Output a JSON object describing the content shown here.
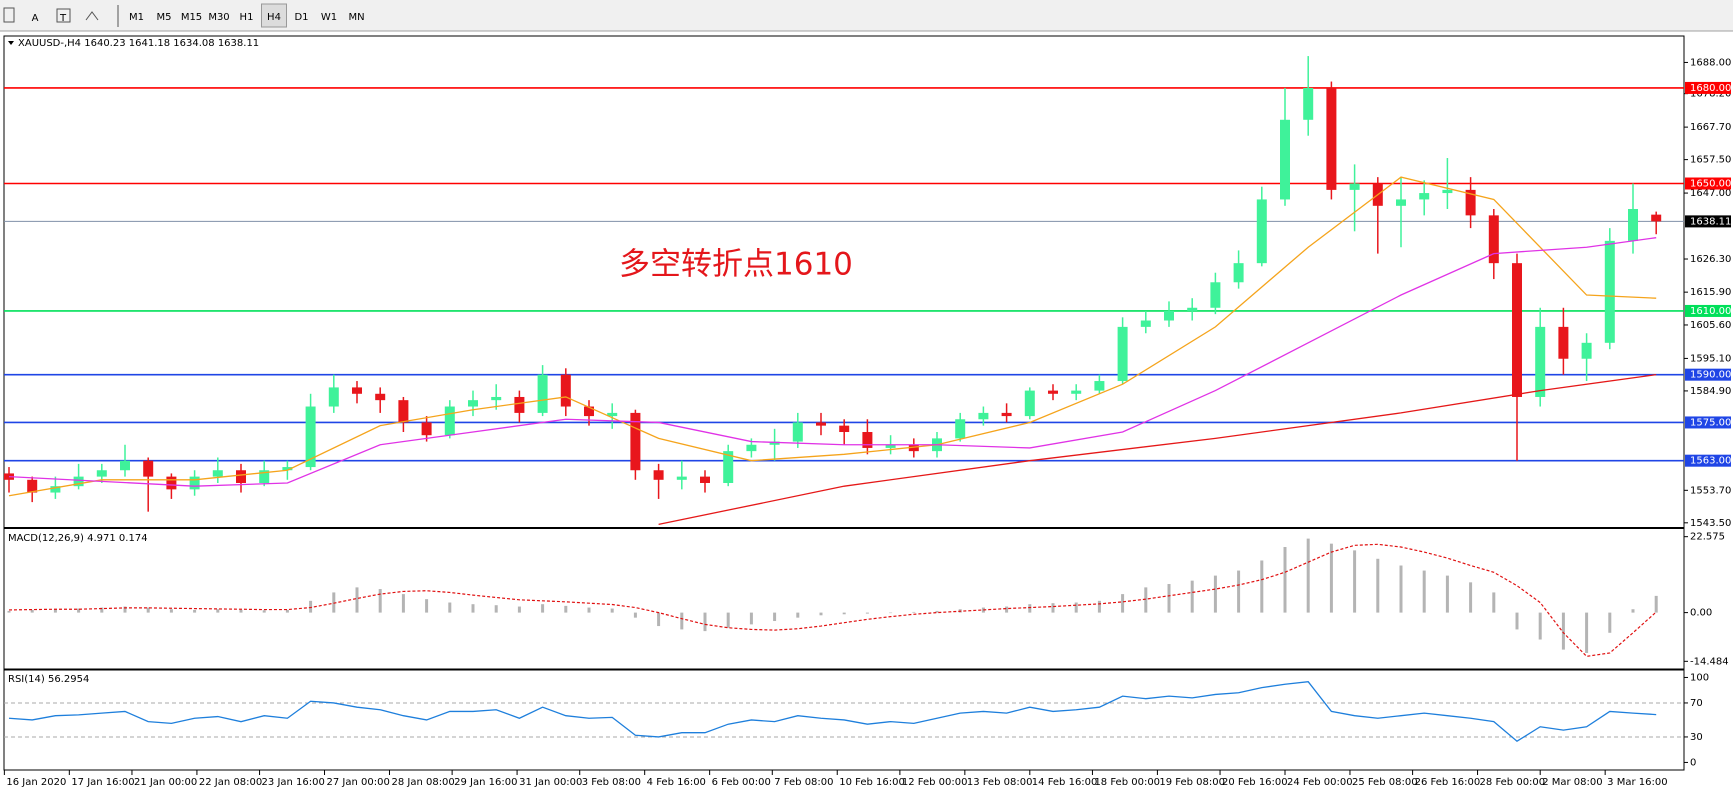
{
  "toolbar": {
    "tools": [
      "A",
      "T"
    ],
    "timeframes": [
      "M1",
      "M5",
      "M15",
      "M30",
      "H1",
      "H4",
      "D1",
      "W1",
      "MN"
    ]
  },
  "chart_data": [
    {
      "type": "candlestick",
      "title": "XAUUSD-,H4  1640.23 1641.18 1634.08 1638.11",
      "annotation": "多空转折点1610",
      "up_color": "#3ff29a",
      "down_color": "#e8161c",
      "open": [
        1559,
        1557,
        1553,
        1555,
        1558,
        1560,
        1563,
        1558,
        1554,
        1558,
        1560,
        1556,
        1560,
        1561,
        1580,
        1586,
        1584,
        1582,
        1575,
        1571,
        1580,
        1582,
        1583,
        1578,
        1590,
        1580,
        1577,
        1578,
        1560,
        1557,
        1558,
        1556,
        1566,
        1568,
        1569,
        1575,
        1574,
        1572,
        1567,
        1568,
        1566,
        1570,
        1576,
        1578,
        1577,
        1585,
        1584,
        1585,
        1588,
        1605,
        1607,
        1610,
        1611,
        1619,
        1625,
        1645,
        1670,
        1680,
        1648,
        1650,
        1643,
        1645,
        1647,
        1648,
        1640,
        1625,
        1583,
        1605,
        1595,
        1600,
        1632,
        1640.23
      ],
      "high": [
        1561,
        1558,
        1558,
        1562,
        1562,
        1568,
        1564,
        1559,
        1560,
        1564,
        1562,
        1563,
        1563,
        1584,
        1590,
        1588,
        1586,
        1583,
        1577,
        1582,
        1585,
        1587,
        1585,
        1593,
        1592,
        1582,
        1581,
        1579,
        1562,
        1563,
        1560,
        1568,
        1570,
        1573,
        1578,
        1578,
        1576,
        1576,
        1571,
        1570,
        1572,
        1578,
        1580,
        1581,
        1586,
        1587,
        1587,
        1590,
        1608,
        1610,
        1613,
        1614,
        1622,
        1629,
        1649,
        1680,
        1690,
        1682,
        1656,
        1652,
        1652,
        1651,
        1658,
        1652,
        1642,
        1628,
        1611,
        1611,
        1603,
        1636,
        1650,
        1641.18
      ],
      "low": [
        1553,
        1550,
        1551,
        1554,
        1556,
        1558,
        1547,
        1551,
        1552,
        1556,
        1553,
        1555,
        1557,
        1560,
        1578,
        1581,
        1578,
        1572,
        1569,
        1570,
        1577,
        1579,
        1575,
        1577,
        1577,
        1574,
        1573,
        1557,
        1551,
        1554,
        1553,
        1555,
        1564,
        1563,
        1567,
        1571,
        1568,
        1565,
        1565,
        1564,
        1564,
        1569,
        1574,
        1575,
        1576,
        1582,
        1582,
        1584,
        1587,
        1603,
        1605,
        1607,
        1609,
        1617,
        1624,
        1643,
        1665,
        1645,
        1635,
        1628,
        1630,
        1640,
        1642,
        1636,
        1620,
        1563,
        1580,
        1590,
        1588,
        1598,
        1628,
        1634.08
      ],
      "close": [
        1557,
        1553,
        1555,
        1558,
        1560,
        1563,
        1558,
        1554,
        1558,
        1560,
        1556,
        1560,
        1561,
        1580,
        1586,
        1584,
        1582,
        1575,
        1571,
        1580,
        1582,
        1583,
        1578,
        1590,
        1580,
        1577,
        1578,
        1560,
        1557,
        1558,
        1556,
        1566,
        1568,
        1569,
        1575,
        1574,
        1572,
        1567,
        1568,
        1566,
        1570,
        1576,
        1578,
        1577,
        1585,
        1584,
        1585,
        1588,
        1605,
        1607,
        1610,
        1611,
        1619,
        1625,
        1645,
        1670,
        1680,
        1648,
        1650,
        1643,
        1645,
        1647,
        1648,
        1640,
        1625,
        1583,
        1605,
        1595,
        1600,
        1632,
        1642,
        1638.11
      ],
      "series": [
        {
          "color": "#f5a41c",
          "x": [
            0,
            4,
            8,
            12,
            16,
            20,
            24,
            28,
            32,
            36,
            40,
            44,
            48,
            52,
            56,
            60,
            64,
            68,
            71
          ],
          "values": [
            1552,
            1557,
            1557,
            1560,
            1574,
            1579,
            1583,
            1570,
            1563,
            1565,
            1568,
            1575,
            1587,
            1605,
            1630,
            1652,
            1645,
            1615,
            1614
          ]
        },
        {
          "color": "#e033e6",
          "x": [
            0,
            8,
            12,
            16,
            20,
            24,
            28,
            32,
            36,
            40,
            44,
            48,
            52,
            56,
            60,
            64,
            68,
            71
          ],
          "values": [
            1558,
            1555,
            1556,
            1568,
            1572,
            1576,
            1575,
            1569,
            1568,
            1568,
            1567,
            1572,
            1585,
            1600,
            1615,
            1628,
            1630,
            1633
          ]
        },
        {
          "color": "#e51818",
          "x": [
            28,
            36,
            44,
            52,
            60,
            66,
            71
          ],
          "values": [
            1543,
            1555,
            1563,
            1570,
            1578,
            1585,
            1590
          ]
        }
      ],
      "levels": [
        {
          "value": 1680,
          "label": "1680.00",
          "color": "#ff0000"
        },
        {
          "value": 1650,
          "label": "1650.00",
          "color": "#ff0000"
        },
        {
          "value": 1610,
          "label": "1610.00",
          "color": "#00e05a"
        },
        {
          "value": 1590,
          "label": "1590.00",
          "color": "#1f45e6"
        },
        {
          "value": 1575,
          "label": "1575.00",
          "color": "#1f45e6"
        },
        {
          "value": 1563,
          "label": "1563.00",
          "color": "#1f45e6"
        }
      ],
      "last_price": 1638.11,
      "ylim": [
        1542.5,
        1696.3
      ],
      "yticks": [
        {
          "value": 1688,
          "label": "1688.00"
        },
        {
          "value": 1678.2,
          "label": "1678.20"
        },
        {
          "value": 1667.7,
          "label": "1667.70"
        },
        {
          "value": 1657.5,
          "label": "1657.50"
        },
        {
          "value": 1647,
          "label": "1647.00"
        },
        {
          "value": 1626.3,
          "label": "1626.30"
        },
        {
          "value": 1615.9,
          "label": "1615.90"
        },
        {
          "value": 1605.6,
          "label": "1605.60"
        },
        {
          "value": 1595.1,
          "label": "1595.10"
        },
        {
          "value": 1584.9,
          "label": "1584.90"
        },
        {
          "value": 1553.7,
          "label": "1553.70"
        },
        {
          "value": 1543.5,
          "label": "1543.50"
        }
      ],
      "xticks": [
        {
          "value": -0.2,
          "label": "16 Jan 2020"
        },
        {
          "value": 2.6,
          "label": "17 Jan 16:00"
        },
        {
          "value": 5.3,
          "label": "21 Jan 00:00"
        },
        {
          "value": 8.1,
          "label": "22 Jan 08:00"
        },
        {
          "value": 10.8,
          "label": "23 Jan 16:00"
        },
        {
          "value": 13.6,
          "label": "27 Jan 00:00"
        },
        {
          "value": 16.4,
          "label": "28 Jan 08:00"
        },
        {
          "value": 19.1,
          "label": "29 Jan 16:00"
        },
        {
          "value": 21.9,
          "label": "31 Jan 00:00"
        },
        {
          "value": 24.6,
          "label": "3 Feb 08:00"
        },
        {
          "value": 27.4,
          "label": "4 Feb 16:00"
        },
        {
          "value": 30.2,
          "label": "6 Feb 00:00"
        },
        {
          "value": 32.9,
          "label": "7 Feb 08:00"
        },
        {
          "value": 35.7,
          "label": "10 Feb 16:00"
        },
        {
          "value": 38.4,
          "label": "12 Feb 00:00"
        },
        {
          "value": 41.2,
          "label": "13 Feb 08:00"
        },
        {
          "value": 44.0,
          "label": "14 Feb 16:00"
        },
        {
          "value": 46.7,
          "label": "18 Feb 00:00"
        },
        {
          "value": 49.5,
          "label": "19 Feb 08:00"
        },
        {
          "value": 52.2,
          "label": "20 Feb 16:00"
        },
        {
          "value": 55.0,
          "label": "24 Feb 00:00"
        },
        {
          "value": 57.8,
          "label": "25 Feb 08:00"
        },
        {
          "value": 60.5,
          "label": "26 Feb 16:00"
        },
        {
          "value": 63.3,
          "label": "28 Feb 00:00"
        },
        {
          "value": 66.0,
          "label": "2 Mar 08:00"
        },
        {
          "value": 68.8,
          "label": "3 Mar 16:00"
        }
      ]
    },
    {
      "type": "macd",
      "title": "MACD(12,26,9) 4.971 0.174",
      "histogram_color": "#b4b4b4",
      "signal_color": "#e01010",
      "histogram": [
        0.5,
        0.8,
        1.0,
        1.2,
        1.5,
        1.8,
        1.5,
        1.0,
        0.8,
        1.0,
        0.8,
        0.7,
        0.8,
        3.5,
        6.0,
        7.5,
        7.0,
        5.5,
        4.0,
        3.0,
        2.5,
        2.2,
        1.8,
        2.5,
        2.0,
        1.5,
        1.2,
        -1.5,
        -4.0,
        -5.0,
        -5.5,
        -4.5,
        -3.5,
        -2.5,
        -1.5,
        -0.8,
        -0.5,
        -0.3,
        0.0,
        0.2,
        0.5,
        1.0,
        1.5,
        1.8,
        2.5,
        2.8,
        3.0,
        3.5,
        5.5,
        7.5,
        8.5,
        9.5,
        11.0,
        12.5,
        15.5,
        19.5,
        22.0,
        20.5,
        18.5,
        16.0,
        14.0,
        12.5,
        11.0,
        9.0,
        6.0,
        -5.0,
        -8.0,
        -11.0,
        -12.0,
        -6.0,
        1.0,
        4.971
      ],
      "signal": [
        0.8,
        0.9,
        1.0,
        1.0,
        1.2,
        1.4,
        1.4,
        1.3,
        1.2,
        1.1,
        1.0,
        0.9,
        0.9,
        1.5,
        2.8,
        4.2,
        5.5,
        6.3,
        6.5,
        6.0,
        5.2,
        4.5,
        3.8,
        3.5,
        3.2,
        2.8,
        2.4,
        1.5,
        0.0,
        -1.8,
        -3.5,
        -4.5,
        -5.0,
        -5.2,
        -4.8,
        -4.0,
        -3.0,
        -2.0,
        -1.2,
        -0.5,
        0.0,
        0.4,
        0.8,
        1.2,
        1.5,
        1.8,
        2.2,
        2.6,
        3.2,
        4.0,
        5.0,
        6.0,
        7.0,
        8.2,
        9.8,
        12.0,
        15.0,
        18.0,
        20.0,
        20.3,
        19.5,
        18.0,
        16.2,
        14.0,
        12.0,
        8.0,
        3.0,
        -6.0,
        -13.0,
        -12.0,
        -6.0,
        0.174
      ],
      "ylim": [
        -16.47,
        24.56
      ],
      "yticks": [
        22.575,
        {
          "value": 0,
          "label": "0.00"
        },
        -14.484
      ]
    },
    {
      "type": "line",
      "title": "RSI(14) 56.2954",
      "color": "#1e7fdc",
      "values": [
        52,
        50,
        55,
        56,
        58,
        60,
        48,
        46,
        52,
        54,
        48,
        55,
        52,
        72,
        70,
        65,
        62,
        55,
        50,
        60,
        60,
        62,
        52,
        65,
        55,
        52,
        53,
        32,
        30,
        35,
        35,
        45,
        50,
        48,
        55,
        52,
        50,
        45,
        48,
        46,
        52,
        58,
        60,
        58,
        65,
        60,
        62,
        65,
        78,
        75,
        78,
        76,
        80,
        82,
        88,
        92,
        95,
        60,
        55,
        52,
        55,
        58,
        55,
        52,
        48,
        25,
        42,
        38,
        42,
        60,
        58,
        56.2954
      ],
      "levels": [
        70,
        30
      ],
      "ylim": [
        -8.9,
        107.6
      ],
      "yticks": [
        100,
        70,
        30,
        0
      ]
    }
  ]
}
